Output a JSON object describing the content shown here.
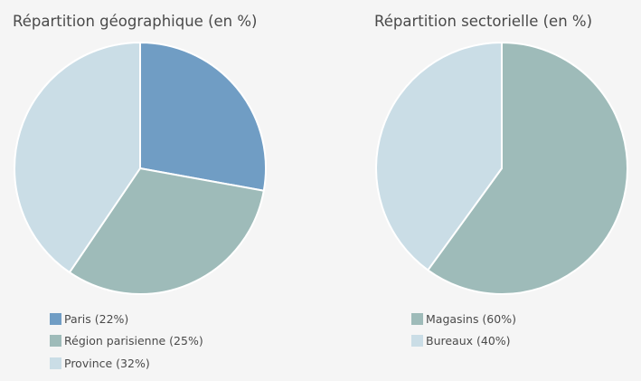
{
  "chart_data": [
    {
      "type": "pie",
      "title": "Répartition géographique (en %)",
      "categories": [
        "Paris (22%)",
        "Région parisienne (25%)",
        "Province (32%)"
      ],
      "values": [
        22,
        25,
        32
      ],
      "colors": [
        "#709dc4",
        "#9ebbb9",
        "#cadde6"
      ],
      "legend": "bottom-left"
    },
    {
      "type": "pie",
      "title": "Répartition sectorielle (en %)",
      "categories": [
        "Magasins (60%)",
        "Bureaux (40%)"
      ],
      "values": [
        60,
        40
      ],
      "colors": [
        "#9ebbb9",
        "#cadde6"
      ],
      "legend": "bottom-left"
    }
  ]
}
